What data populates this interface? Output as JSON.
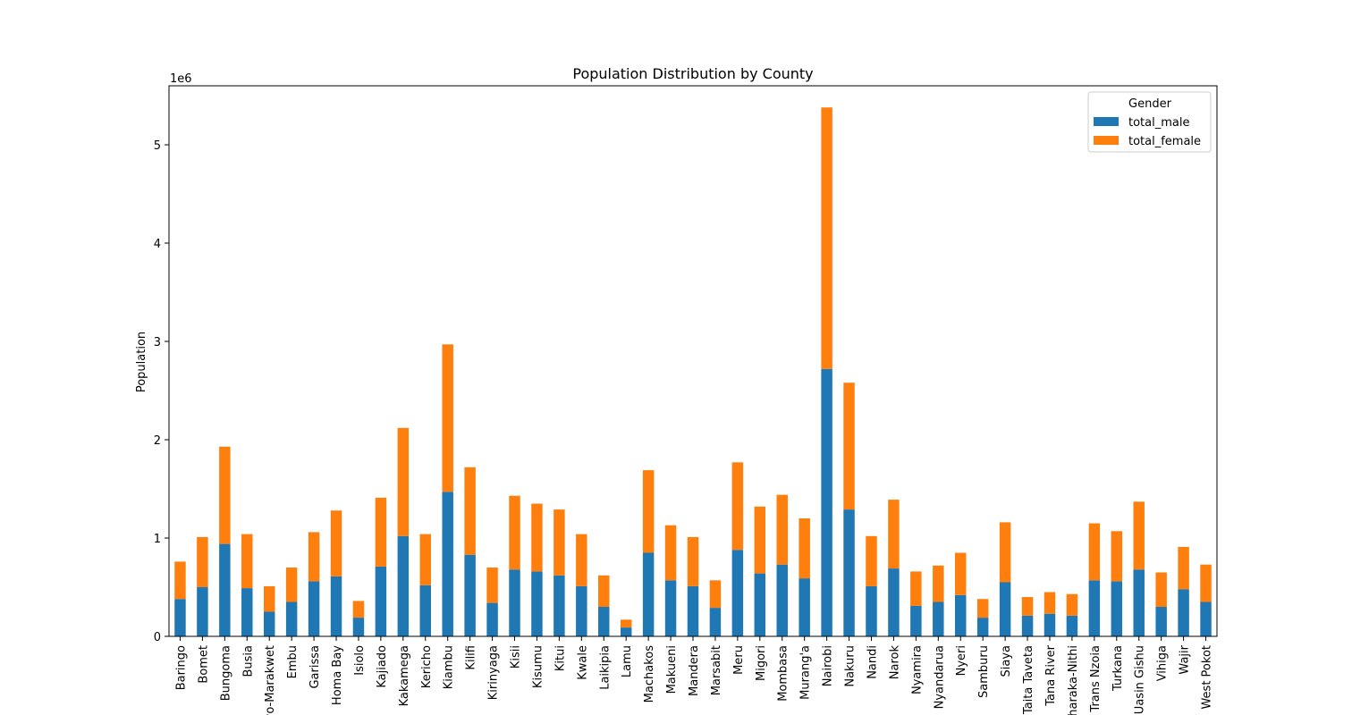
{
  "chart_data": {
    "type": "bar",
    "stacked": true,
    "title": "Population Distribution by County",
    "xlabel": "",
    "ylabel": "Population",
    "y_scale_label": "1e6",
    "ylim": [
      0,
      5.6
    ],
    "yticks": [
      0,
      1,
      2,
      3,
      4,
      5
    ],
    "grid": false,
    "legend": {
      "title": "Gender",
      "placement": "top-right"
    },
    "categories": [
      "Baringo",
      "Bomet",
      "Bungoma",
      "Busia",
      "Elgeyo-Marakwet",
      "Embu",
      "Garissa",
      "Homa Bay",
      "Isiolo",
      "Kajiado",
      "Kakamega",
      "Kericho",
      "Kiambu",
      "Kilifi",
      "Kirinyaga",
      "Kisii",
      "Kisumu",
      "Kitui",
      "Kwale",
      "Laikipia",
      "Lamu",
      "Machakos",
      "Makueni",
      "Mandera",
      "Marsabit",
      "Meru",
      "Migori",
      "Mombasa",
      "Murang'a",
      "Nairobi",
      "Nakuru",
      "Nandi",
      "Narok",
      "Nyamira",
      "Nyandarua",
      "Nyeri",
      "Samburu",
      "Siaya",
      "Taita Taveta",
      "Tana River",
      "Tharaka-Nithi",
      "Trans Nzoia",
      "Turkana",
      "Uasin Gishu",
      "Vihiga",
      "Wajir",
      "West Pokot"
    ],
    "series": [
      {
        "name": "total_male",
        "color": "#1f77b4",
        "values": [
          0.38,
          0.5,
          0.94,
          0.49,
          0.25,
          0.35,
          0.56,
          0.61,
          0.19,
          0.71,
          1.02,
          0.52,
          1.47,
          0.83,
          0.34,
          0.68,
          0.66,
          0.62,
          0.51,
          0.3,
          0.09,
          0.85,
          0.57,
          0.51,
          0.29,
          0.88,
          0.64,
          0.73,
          0.59,
          2.72,
          1.29,
          0.51,
          0.69,
          0.31,
          0.35,
          0.42,
          0.19,
          0.55,
          0.21,
          0.23,
          0.21,
          0.57,
          0.56,
          0.68,
          0.3,
          0.48,
          0.35
        ]
      },
      {
        "name": "total_female",
        "color": "#ff7f0e",
        "values": [
          0.38,
          0.51,
          0.99,
          0.55,
          0.26,
          0.35,
          0.5,
          0.67,
          0.17,
          0.7,
          1.1,
          0.52,
          1.5,
          0.89,
          0.36,
          0.75,
          0.69,
          0.67,
          0.53,
          0.32,
          0.08,
          0.84,
          0.56,
          0.5,
          0.28,
          0.89,
          0.68,
          0.71,
          0.61,
          2.66,
          1.29,
          0.51,
          0.7,
          0.35,
          0.37,
          0.43,
          0.19,
          0.61,
          0.19,
          0.22,
          0.22,
          0.58,
          0.51,
          0.69,
          0.35,
          0.43,
          0.38
        ]
      }
    ]
  }
}
